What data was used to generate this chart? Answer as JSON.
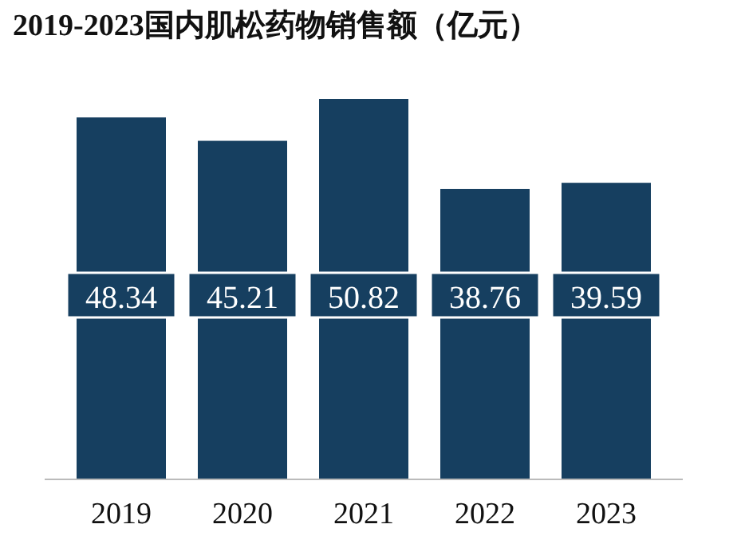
{
  "chart_data": {
    "type": "bar",
    "title": "2019-2023国内肌松药物销售额（亿元）",
    "categories": [
      "2019",
      "2020",
      "2021",
      "2022",
      "2023"
    ],
    "values": [
      48.34,
      45.21,
      50.82,
      38.76,
      39.59
    ],
    "color": "#163f60",
    "data_labels": true
  }
}
